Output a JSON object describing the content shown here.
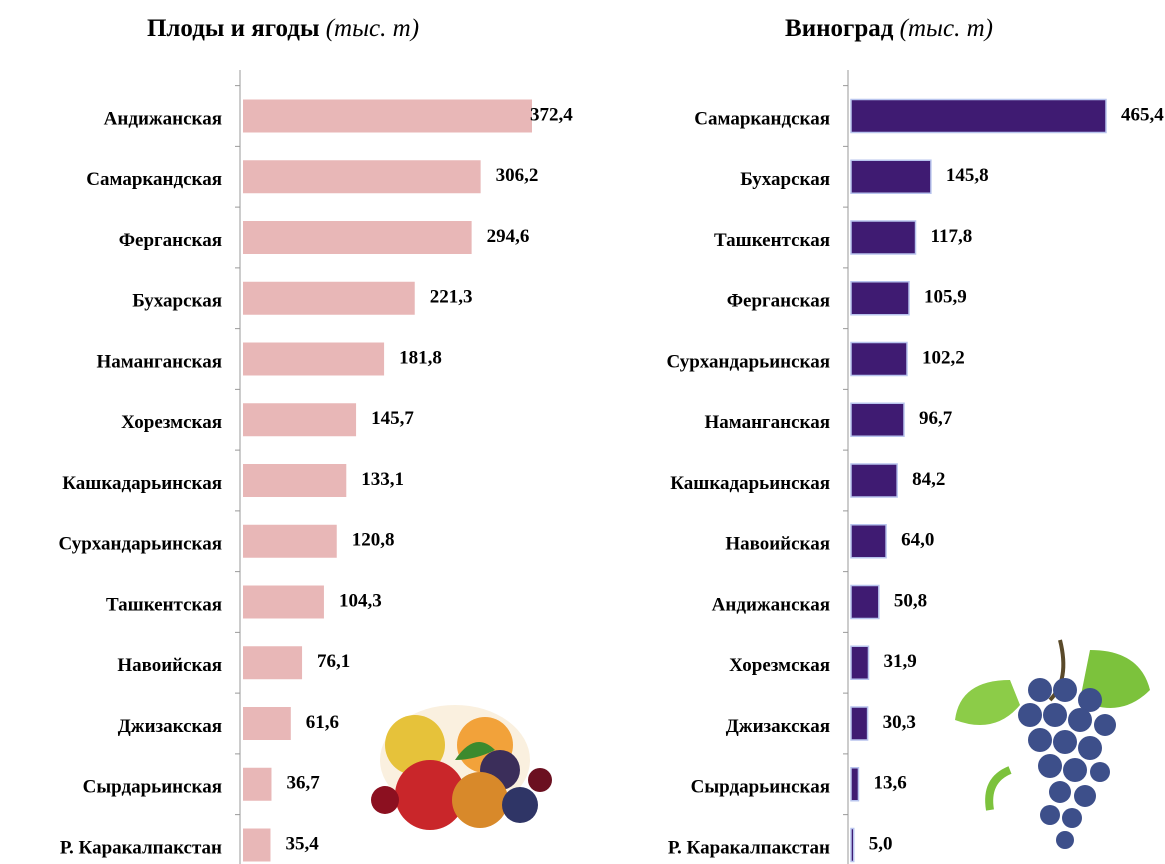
{
  "chart_data": [
    {
      "type": "bar",
      "orientation": "horizontal",
      "title": "Плоды и ягоды",
      "unit": "(тыс. т)",
      "color": "#e8b7b7",
      "categories": [
        "Андижанская",
        "Самаркандская",
        "Ферганская",
        "Бухарская",
        "Наманганская",
        "Хорезмская",
        "Кашкадарьинская",
        "Сурхандарьинская",
        "Ташкентская",
        "Навоийская",
        "Джизакская",
        "Сырдарьинская",
        "Р. Каракалпакстан"
      ],
      "values": [
        372.4,
        306.2,
        294.6,
        221.3,
        181.8,
        145.7,
        133.1,
        120.8,
        104.3,
        76.1,
        61.6,
        36.7,
        35.4
      ],
      "value_labels": [
        "372,4",
        "306,2",
        "294,6",
        "221,3",
        "181,8",
        "145,7",
        "133,1",
        "120,8",
        "104,3",
        "76,1",
        "61,6",
        "36,7",
        "35,4"
      ]
    },
    {
      "type": "bar",
      "orientation": "horizontal",
      "title": "Виноград",
      "unit": "(тыс. т)",
      "color": "#3f1b72",
      "categories": [
        "Самаркандская",
        "Бухарская",
        "Ташкентская",
        "Ферганская",
        "Сурхандарьинская",
        "Наманганская",
        "Кашкадарьинская",
        "Навоийская",
        "Андижанская",
        "Хорезмская",
        "Джизакская",
        "Сырдарьинская",
        "Р. Каракалпакстан"
      ],
      "values": [
        465.4,
        145.8,
        117.8,
        105.9,
        102.2,
        96.7,
        84.2,
        64.0,
        50.8,
        31.9,
        30.3,
        13.6,
        5.0
      ],
      "value_labels": [
        "465,4",
        "145,8",
        "117,8",
        "105,9",
        "102,2",
        "96,7",
        "84,2",
        "64,0",
        "50,8",
        "31,9",
        "30,3",
        "13,6",
        "5,0"
      ]
    }
  ]
}
